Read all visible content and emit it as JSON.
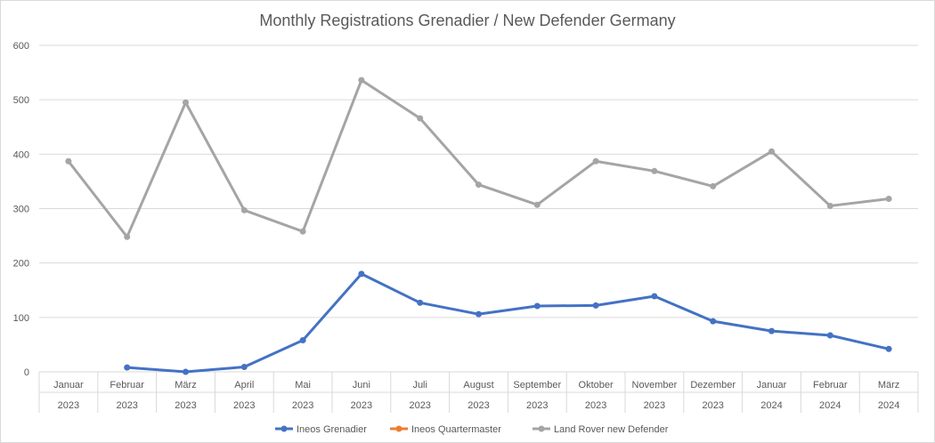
{
  "chart_data": {
    "type": "line",
    "title": "Monthly Registrations Grenadier / New Defender Germany",
    "xlabel": "",
    "ylabel": "",
    "ylim": [
      0,
      600
    ],
    "y_ticks": [
      0,
      100,
      200,
      300,
      400,
      500,
      600
    ],
    "grid": true,
    "legend_position": "bottom",
    "categories": [
      {
        "month": "Januar",
        "year": "2023"
      },
      {
        "month": "Februar",
        "year": "2023"
      },
      {
        "month": "März",
        "year": "2023"
      },
      {
        "month": "April",
        "year": "2023"
      },
      {
        "month": "Mai",
        "year": "2023"
      },
      {
        "month": "Juni",
        "year": "2023"
      },
      {
        "month": "Juli",
        "year": "2023"
      },
      {
        "month": "August",
        "year": "2023"
      },
      {
        "month": "September",
        "year": "2023"
      },
      {
        "month": "Oktober",
        "year": "2023"
      },
      {
        "month": "November",
        "year": "2023"
      },
      {
        "month": "Dezember",
        "year": "2023"
      },
      {
        "month": "Januar",
        "year": "2024"
      },
      {
        "month": "Februar",
        "year": "2024"
      },
      {
        "month": "März",
        "year": "2024"
      }
    ],
    "series": [
      {
        "name": "Ineos Grenadier",
        "color": "#4472c4",
        "values": [
          null,
          8,
          0,
          9,
          58,
          180,
          127,
          106,
          121,
          122,
          139,
          93,
          75,
          67,
          42
        ]
      },
      {
        "name": "Ineos Quartermaster",
        "color": "#ed7d31",
        "values": [
          null,
          null,
          null,
          null,
          null,
          null,
          null,
          null,
          null,
          null,
          null,
          null,
          null,
          null,
          null
        ]
      },
      {
        "name": "Land Rover new Defender",
        "color": "#a5a5a5",
        "values": [
          387,
          248,
          495,
          297,
          258,
          536,
          466,
          344,
          307,
          387,
          369,
          341,
          405,
          305,
          318
        ]
      }
    ]
  }
}
